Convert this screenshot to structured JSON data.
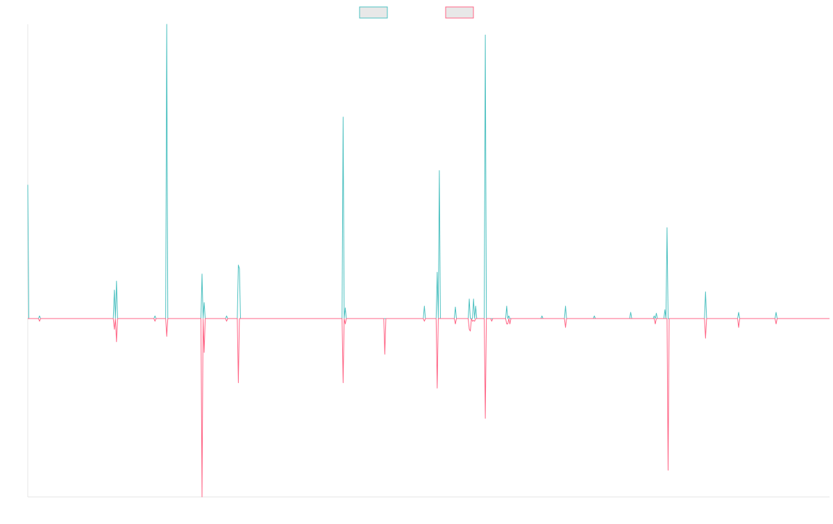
{
  "chart_data": {
    "type": "line",
    "title": "",
    "xlabel": "",
    "ylabel": "",
    "grid": false,
    "legend_placement": "top-center",
    "ylim": [
      -100,
      165
    ],
    "series": [
      {
        "name": "",
        "color": "#4BC0C0",
        "stroke": "#4BC0C0",
        "points": [
          [
            0,
            75
          ],
          [
            1,
            0
          ],
          [
            10,
            0
          ],
          [
            11,
            1.5
          ],
          [
            12,
            0
          ],
          [
            80,
            0
          ],
          [
            81,
            16
          ],
          [
            82,
            0
          ],
          [
            83,
            21
          ],
          [
            84,
            0
          ],
          [
            118,
            0
          ],
          [
            119,
            1.5
          ],
          [
            120,
            0
          ],
          [
            129,
            0
          ],
          [
            130,
            165
          ],
          [
            131,
            0
          ],
          [
            162,
            0
          ],
          [
            163,
            25
          ],
          [
            164,
            0
          ],
          [
            165,
            9
          ],
          [
            166,
            0
          ],
          [
            185,
            0
          ],
          [
            186,
            1.5
          ],
          [
            187,
            0
          ],
          [
            196,
            0
          ],
          [
            197,
            30
          ],
          [
            198,
            28
          ],
          [
            199,
            0
          ],
          [
            294,
            0
          ],
          [
            295,
            113
          ],
          [
            296,
            0
          ],
          [
            297,
            6
          ],
          [
            298,
            0
          ],
          [
            333,
            0
          ],
          [
            334,
            0
          ],
          [
            370,
            0
          ],
          [
            371,
            7
          ],
          [
            372,
            0
          ],
          [
            382,
            0
          ],
          [
            383,
            26
          ],
          [
            384,
            0
          ],
          [
            385,
            83
          ],
          [
            386,
            0
          ],
          [
            399,
            0
          ],
          [
            400,
            6.5
          ],
          [
            401,
            0
          ],
          [
            412,
            0
          ],
          [
            413,
            11
          ],
          [
            414,
            0
          ],
          [
            415,
            0
          ],
          [
            416,
            0
          ],
          [
            417,
            11
          ],
          [
            418,
            0
          ],
          [
            419,
            7
          ],
          [
            420,
            0
          ],
          [
            427,
            0
          ],
          [
            428,
            159
          ],
          [
            429,
            0
          ],
          [
            447,
            0
          ],
          [
            448,
            7
          ],
          [
            449,
            0
          ],
          [
            450,
            1.5
          ],
          [
            451,
            0
          ],
          [
            480,
            0
          ],
          [
            481,
            1.5
          ],
          [
            482,
            0
          ],
          [
            502,
            0
          ],
          [
            503,
            7
          ],
          [
            504,
            0
          ],
          [
            529,
            0
          ],
          [
            530,
            1.5
          ],
          [
            531,
            0
          ],
          [
            563,
            0
          ],
          [
            564,
            3.5
          ],
          [
            565,
            0
          ],
          [
            585,
            0
          ],
          [
            586,
            1.5
          ],
          [
            587,
            0
          ],
          [
            588,
            3
          ],
          [
            589,
            0
          ],
          [
            595,
            0
          ],
          [
            596,
            5
          ],
          [
            597,
            0
          ],
          [
            598,
            51
          ],
          [
            599,
            0
          ],
          [
            633,
            0
          ],
          [
            634,
            15
          ],
          [
            635,
            0
          ],
          [
            664,
            0
          ],
          [
            665,
            3.5
          ],
          [
            666,
            0
          ],
          [
            699,
            0
          ],
          [
            700,
            3.5
          ],
          [
            701,
            0
          ],
          [
            750,
            0
          ]
        ]
      },
      {
        "name": "",
        "color": "#FF6384",
        "stroke": "#FF6384",
        "points": [
          [
            0,
            0
          ],
          [
            10,
            0
          ],
          [
            11,
            -1.5
          ],
          [
            12,
            0
          ],
          [
            80,
            0
          ],
          [
            81,
            -6
          ],
          [
            82,
            0
          ],
          [
            83,
            -13
          ],
          [
            84,
            0
          ],
          [
            118,
            0
          ],
          [
            119,
            -1.5
          ],
          [
            120,
            0
          ],
          [
            129,
            0
          ],
          [
            130,
            -10
          ],
          [
            131,
            0
          ],
          [
            162,
            0
          ],
          [
            163,
            -100
          ],
          [
            164,
            0
          ],
          [
            165,
            -19
          ],
          [
            166,
            0
          ],
          [
            185,
            0
          ],
          [
            186,
            -1.5
          ],
          [
            187,
            0
          ],
          [
            196,
            0
          ],
          [
            197,
            -36
          ],
          [
            198,
            0
          ],
          [
            294,
            0
          ],
          [
            295,
            -36
          ],
          [
            296,
            0
          ],
          [
            297,
            -3
          ],
          [
            298,
            0
          ],
          [
            333,
            0
          ],
          [
            334,
            -20
          ],
          [
            335,
            0
          ],
          [
            370,
            0
          ],
          [
            371,
            -1.5
          ],
          [
            372,
            0
          ],
          [
            382,
            0
          ],
          [
            383,
            -39
          ],
          [
            384,
            0
          ],
          [
            385,
            0
          ],
          [
            399,
            0
          ],
          [
            400,
            -3
          ],
          [
            401,
            0
          ],
          [
            412,
            0
          ],
          [
            413,
            -6
          ],
          [
            414,
            -7
          ],
          [
            415,
            0
          ],
          [
            416,
            -1.5
          ],
          [
            417,
            -1
          ],
          [
            418,
            -1.5
          ],
          [
            419,
            0
          ],
          [
            427,
            0
          ],
          [
            428,
            -56
          ],
          [
            429,
            0
          ],
          [
            433,
            0
          ],
          [
            434,
            -1.5
          ],
          [
            435,
            0
          ],
          [
            447,
            0
          ],
          [
            448,
            -3
          ],
          [
            449,
            -3
          ],
          [
            450,
            0
          ],
          [
            451,
            -3
          ],
          [
            452,
            0
          ],
          [
            502,
            0
          ],
          [
            503,
            -5
          ],
          [
            504,
            0
          ],
          [
            586,
            0
          ],
          [
            587,
            -3
          ],
          [
            588,
            0
          ],
          [
            598,
            0
          ],
          [
            599,
            -85
          ],
          [
            600,
            0
          ],
          [
            633,
            0
          ],
          [
            634,
            -11
          ],
          [
            635,
            0
          ],
          [
            664,
            0
          ],
          [
            665,
            -5
          ],
          [
            666,
            0
          ],
          [
            699,
            0
          ],
          [
            700,
            -3
          ],
          [
            701,
            0
          ],
          [
            750,
            0
          ]
        ]
      }
    ],
    "x_range": [
      0,
      750
    ]
  }
}
